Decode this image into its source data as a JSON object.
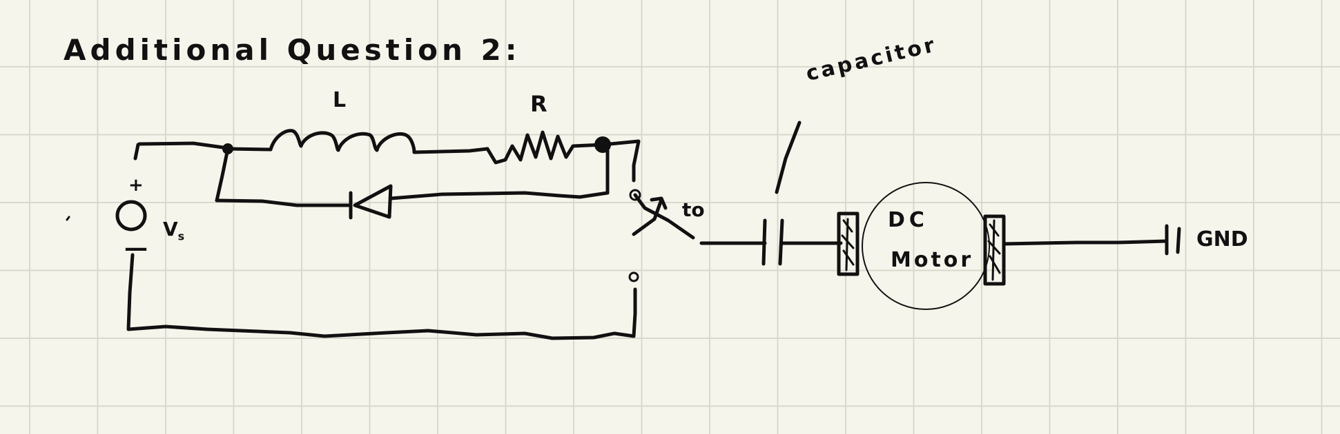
{
  "title": "Additional Question 2:",
  "labels": {
    "inductor": "L",
    "resistor": "R",
    "source_plus": "+",
    "source_minus": "—",
    "source": "V",
    "source_sub": "s",
    "switch_to": "to",
    "capacitor": "capacitor",
    "motor_line1": "DC",
    "motor_line2": "Motor",
    "ground": "GND"
  },
  "colors": {
    "paper": "#f6f5ec",
    "grid": "#d8d8cc",
    "ink": "#111111"
  }
}
